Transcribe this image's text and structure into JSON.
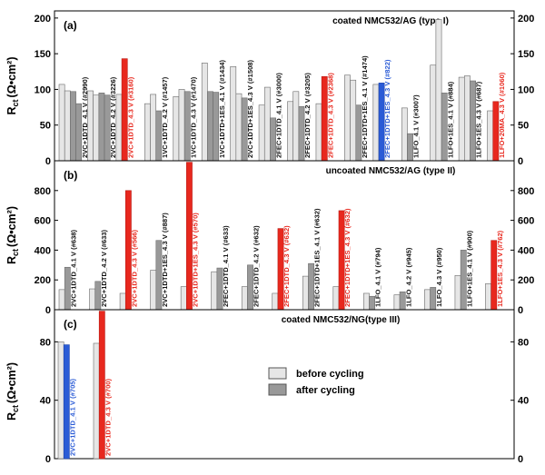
{
  "legend": {
    "before_label": "before cycling",
    "after_label": "after cycling",
    "before_color": "#e6e6e6",
    "after_color": "#999999"
  },
  "colors": {
    "highlight_red": "#e8281e",
    "highlight_blue": "#2a5bd6",
    "label_black": "#111111"
  },
  "chart_data": [
    {
      "type": "bar",
      "panel": "(a)",
      "title": "coated NMC532/AG (type I)",
      "ylabel_main": "R",
      "ylabel_sub": "ct",
      "ylabel_unit": "(Ω•cm²)",
      "ylim": [
        0,
        210
      ],
      "yticks": [
        0,
        50,
        100,
        150,
        200
      ],
      "grid": false,
      "groups": [
        {
          "label": "2VC+1DTD_4.1 V (#2990)",
          "label_color": "black",
          "before": [
            107,
            98
          ],
          "after": [
            97,
            80
          ],
          "highlight": null
        },
        {
          "label": "2VC+1DTD_4.2 V (#3226)",
          "label_color": "black",
          "before": [
            98,
            92
          ],
          "after": [
            95,
            92
          ],
          "highlight": null
        },
        {
          "label": "2VC+1DTD_4.3 V (#3160)",
          "label_color": "red",
          "before": [
            93
          ],
          "after": [],
          "highlight": {
            "kind": "red",
            "value": 143
          }
        },
        {
          "label": "1VC+1DTD_4.2 V (#1457)",
          "label_color": "black",
          "before": [
            80,
            93
          ],
          "after": [
            70
          ],
          "highlight": null
        },
        {
          "label": "1VC+1DTD_4.3 V (#1470)",
          "label_color": "black",
          "before": [
            90,
            100
          ],
          "after": [
            97
          ],
          "highlight": null
        },
        {
          "label": "1VC+1DTD+1ES_4.1 V (#1434)",
          "label_color": "black",
          "before": [
            137
          ],
          "after": [
            97,
            96
          ],
          "highlight": null
        },
        {
          "label": "2VC+1DTD+1ES_4.3 V (#1508)",
          "label_color": "black",
          "before": [
            132,
            94
          ],
          "after": [
            88
          ],
          "highlight": null
        },
        {
          "label": "2FEC+1DTD_4.1 V (#3000)",
          "label_color": "black",
          "before": [
            78,
            103
          ],
          "after": [
            60
          ],
          "highlight": null
        },
        {
          "label": "2FEC+1DTD_4.2 V (#3205)",
          "label_color": "black",
          "before": [
            83,
            97
          ],
          "after": [
            76
          ],
          "highlight": null
        },
        {
          "label": "2FEC+1DTD_4.3 V (#2368)",
          "label_color": "red",
          "before": [
            80
          ],
          "after": [],
          "highlight": {
            "kind": "red",
            "value": 118
          }
        },
        {
          "label": "2FEC+1DTD+1ES_4.1 V (#1474)",
          "label_color": "black",
          "before": [
            120,
            113
          ],
          "after": [
            78
          ],
          "highlight": null
        },
        {
          "label": "2FEC+1DTD+1ES_4.3 V (#822)",
          "label_color": "blue",
          "before": [
            107
          ],
          "after": [],
          "highlight": {
            "kind": "blue",
            "value": 109
          }
        },
        {
          "label": "1LFO_4.1 V (#3007)",
          "label_color": "black",
          "before": [
            74
          ],
          "after": [
            38
          ],
          "highlight": null
        },
        {
          "label": "1LFO+1ES_4.1 V (#884)",
          "label_color": "black",
          "before": [
            134,
            198
          ],
          "after": [
            95
          ],
          "highlight": null
        },
        {
          "label": "1LFO+1ES_4.3 V (#687)",
          "label_color": "black",
          "before": [
            117,
            119
          ],
          "after": [
            112
          ],
          "highlight": null
        },
        {
          "label": "1LFO+20MA_4.3 V (#1060)",
          "label_color": "red",
          "before": [
            70
          ],
          "after": [],
          "highlight": {
            "kind": "red",
            "value": 83
          }
        }
      ]
    },
    {
      "type": "bar",
      "panel": "(b)",
      "title": "uncoated NMC532/AG (type II)",
      "ylabel_main": "R",
      "ylabel_sub": "ct",
      "ylabel_unit": "(Ω•cm²)",
      "ylim": [
        0,
        1000
      ],
      "yticks": [
        0,
        200,
        400,
        600,
        800
      ],
      "grid": false,
      "groups": [
        {
          "label": "2VC+1DTD_4.1 V (#638)",
          "label_color": "black",
          "before": [
            135
          ],
          "after": [
            285
          ],
          "highlight": null
        },
        {
          "label": "2VC+1DTD_4.2 V (#633)",
          "label_color": "black",
          "before": [
            140
          ],
          "after": [
            190
          ],
          "highlight": null
        },
        {
          "label": "2VC+1DTD_4.3 V (#566)",
          "label_color": "red",
          "before": [
            110
          ],
          "after": [],
          "highlight": {
            "kind": "red",
            "value": 800
          }
        },
        {
          "label": "2VC+1DTD+1ES_4.3 V (#887)",
          "label_color": "black",
          "before": [
            265
          ],
          "after": [
            465
          ],
          "highlight": null
        },
        {
          "label": "2VC+1DTD+1ES_4.3 V (#570)",
          "label_color": "red",
          "before": [
            155
          ],
          "after": [],
          "highlight": {
            "kind": "red",
            "value": 990
          }
        },
        {
          "label": "2FEC+1DTD_4.1 V (#633)",
          "label_color": "black",
          "before": [
            255
          ],
          "after": [
            280
          ],
          "highlight": null
        },
        {
          "label": "2FEC+1DTD_4.2 V (#632)",
          "label_color": "black",
          "before": [
            155
          ],
          "after": [
            300
          ],
          "highlight": null
        },
        {
          "label": "2FEC+1DTD_4.3 V (#632)",
          "label_color": "red",
          "before": [
            110
          ],
          "after": [],
          "highlight": {
            "kind": "red",
            "value": 545
          }
        },
        {
          "label": "2FEC+1DTD+1ES_4.1 V (#632)",
          "label_color": "black",
          "before": [
            225
          ],
          "after": [
            310
          ],
          "highlight": null
        },
        {
          "label": "2FEC+1DTD+1ES_4.3 V (#632)",
          "label_color": "red",
          "before": [
            155
          ],
          "after": [],
          "highlight": {
            "kind": "red",
            "value": 665
          }
        },
        {
          "label": "1LFO_4.1 V (#794)",
          "label_color": "black",
          "before": [
            110
          ],
          "after": [
            90
          ],
          "highlight": null
        },
        {
          "label": "1LFO_4.2 V (#945)",
          "label_color": "black",
          "before": [
            100
          ],
          "after": [
            120
          ],
          "highlight": null
        },
        {
          "label": "1LFO_4.3 V (#950)",
          "label_color": "black",
          "before": [
            135
          ],
          "after": [
            150
          ],
          "highlight": null
        },
        {
          "label": "1LFO+1ES_4.1 V (#900)",
          "label_color": "black",
          "before": [
            230
          ],
          "after": [
            400
          ],
          "highlight": null
        },
        {
          "label": "1LFO+1ES_4.3 V (#762)",
          "label_color": "red",
          "before": [
            175
          ],
          "after": [],
          "highlight": {
            "kind": "red",
            "value": 465
          }
        }
      ]
    },
    {
      "type": "bar",
      "panel": "(c)",
      "title": "coated NMC532/NG(type III)",
      "ylabel_main": "R",
      "ylabel_sub": "ct",
      "ylabel_unit": "(Ω•cm²)",
      "ylim": [
        0,
        102
      ],
      "yticks": [
        0,
        40,
        80
      ],
      "grid": false,
      "groups": [
        {
          "label": "2VC+1DTD_4.1 V (#705)",
          "label_color": "blue",
          "before": [
            80
          ],
          "after": [],
          "highlight": {
            "kind": "blue",
            "value": 78
          }
        },
        {
          "label": "2VC+1DTD_4.3 V (#700)",
          "label_color": "red",
          "before": [
            79
          ],
          "after": [],
          "highlight": {
            "kind": "red",
            "value": 101
          }
        }
      ]
    }
  ]
}
